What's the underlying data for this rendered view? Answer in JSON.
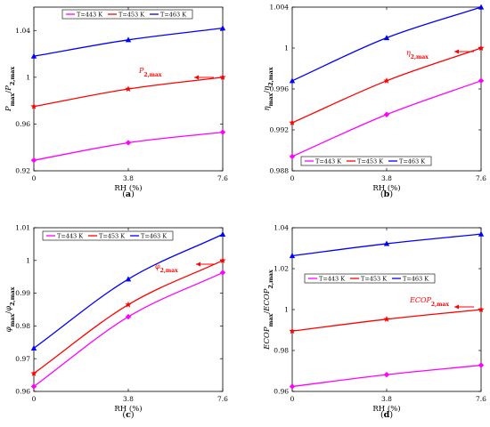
{
  "chart_data": [
    {
      "type": "line",
      "panel": "(a)",
      "xlabel": "RH (%)",
      "ylabel": "P_max / P_2,max",
      "x": [
        0,
        3.8,
        7.6
      ],
      "x_ticks": [
        "0",
        "3.8",
        "7.6"
      ],
      "xlim": [
        0,
        7.6
      ],
      "ylim": [
        0.92,
        1.06
      ],
      "y_ticks": [
        "0.92",
        "0.96",
        "1",
        "1.04"
      ],
      "y_tick_values": [
        0.92,
        0.96,
        1,
        1.04
      ],
      "legend_position": "top",
      "series": [
        {
          "name": "T=443 K",
          "color": "#ff00ff",
          "marker": "diamond",
          "values": [
            0.929,
            0.944,
            0.953
          ]
        },
        {
          "name": "T=453 K",
          "color": "#ff0000",
          "marker": "star",
          "values": [
            0.975,
            0.99,
            1.0
          ]
        },
        {
          "name": "T=463 K",
          "color": "#0000ff",
          "marker": "triangle",
          "values": [
            1.018,
            1.032,
            1.042
          ]
        }
      ],
      "annotation": "P_2,max"
    },
    {
      "type": "line",
      "panel": "(b)",
      "xlabel": "RH (%)",
      "ylabel": "η_max / η_2,max",
      "x": [
        0,
        3.8,
        7.6
      ],
      "x_ticks": [
        "0",
        "3.8",
        "7.6"
      ],
      "xlim": [
        0,
        7.6
      ],
      "ylim": [
        0.988,
        1.004
      ],
      "y_ticks": [
        "0.988",
        "0.992",
        "0.996",
        "1",
        "1.004"
      ],
      "y_tick_values": [
        0.988,
        0.992,
        0.996,
        1,
        1.004
      ],
      "legend_position": "bottom",
      "series": [
        {
          "name": "T=443 K",
          "color": "#ff00ff",
          "marker": "diamond",
          "values": [
            0.9894,
            0.9935,
            0.9968
          ]
        },
        {
          "name": "T=453 K",
          "color": "#ff0000",
          "marker": "star",
          "values": [
            0.9927,
            0.9968,
            1.0
          ]
        },
        {
          "name": "T=463 K",
          "color": "#0000ff",
          "marker": "triangle",
          "values": [
            0.9968,
            1.001,
            1.004
          ]
        }
      ],
      "annotation": "η_2,max"
    },
    {
      "type": "line",
      "panel": "(c)",
      "xlabel": "RH (%)",
      "ylabel": "φ_max / φ_2,max",
      "x": [
        0,
        3.8,
        7.6
      ],
      "x_ticks": [
        "0",
        "3.8",
        "7.6"
      ],
      "xlim": [
        0,
        7.6
      ],
      "ylim": [
        0.96,
        1.01
      ],
      "y_ticks": [
        "0.96",
        "0.97",
        "0.98",
        "0.99",
        "1",
        "1.01"
      ],
      "y_tick_values": [
        0.96,
        0.97,
        0.98,
        0.99,
        1,
        1.01
      ],
      "legend_position": "top",
      "series": [
        {
          "name": "T=443 K",
          "color": "#ff00ff",
          "marker": "diamond",
          "values": [
            0.9615,
            0.9828,
            0.9963
          ]
        },
        {
          "name": "T=453 K",
          "color": "#ff0000",
          "marker": "star",
          "values": [
            0.9655,
            0.9865,
            1.0
          ]
        },
        {
          "name": "T=463 K",
          "color": "#0000ff",
          "marker": "triangle",
          "values": [
            0.9732,
            0.9943,
            1.008
          ]
        }
      ],
      "annotation": "φ_2,max"
    },
    {
      "type": "line",
      "panel": "(d)",
      "xlabel": "RH (%)",
      "ylabel": "ECOP_max / ECOP_2,max",
      "x": [
        0,
        3.8,
        7.6
      ],
      "x_ticks": [
        "0",
        "3.8",
        "7.6"
      ],
      "xlim": [
        0,
        7.6
      ],
      "ylim": [
        0.96,
        1.04
      ],
      "y_ticks": [
        "0.96",
        "0.98",
        "1",
        "1.02",
        "1.04"
      ],
      "y_tick_values": [
        0.96,
        0.98,
        1,
        1.02,
        1.04
      ],
      "legend_position": "middle",
      "series": [
        {
          "name": "T=443 K",
          "color": "#ff00ff",
          "marker": "diamond",
          "values": [
            0.9624,
            0.9682,
            0.9728
          ]
        },
        {
          "name": "T=453 K",
          "color": "#ff0000",
          "marker": "star",
          "values": [
            0.9895,
            0.9953,
            1.0
          ]
        },
        {
          "name": "T=463 K",
          "color": "#0000ff",
          "marker": "triangle",
          "values": [
            1.0263,
            1.0322,
            1.0369
          ]
        }
      ],
      "annotation": "ECOP_2,max"
    }
  ]
}
